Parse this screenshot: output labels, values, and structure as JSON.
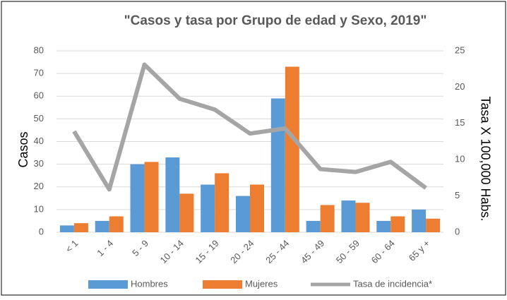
{
  "chart_data": {
    "type": "bar-line",
    "title": "\"Casos y tasa por Grupo de edad y Sexo, 2019\"",
    "y_label": "Casos",
    "y2_label": "Tasa X 100,000 Habs.",
    "categories": [
      "< 1",
      "1 - 4",
      "5 - 9",
      "10 - 14",
      "15 - 19",
      "20 - 24",
      "25 - 44",
      "45 - 49",
      "50 - 59",
      "60 - 64",
      "65 y +"
    ],
    "series": [
      {
        "name": "Hombres",
        "type": "bar",
        "color": "#5b9bd5",
        "values": [
          3,
          5,
          30,
          33,
          21,
          16,
          59,
          5,
          14,
          5,
          10
        ]
      },
      {
        "name": "Mujeres",
        "type": "bar",
        "color": "#ed7d31",
        "values": [
          4,
          7,
          31,
          17,
          26,
          21,
          73,
          12,
          13,
          7,
          6
        ]
      },
      {
        "name": "Tasa de incidencia*",
        "type": "line",
        "axis": "y2",
        "color": "#a5a5a5",
        "values": [
          13.9,
          5.9,
          23.1,
          18.4,
          16.9,
          13.6,
          14.3,
          8.7,
          8.3,
          9.7,
          6.1
        ]
      }
    ],
    "ylim": [
      0,
      80
    ],
    "yticks": [
      0,
      10,
      20,
      30,
      40,
      50,
      60,
      70,
      80
    ],
    "y2lim": [
      0,
      25
    ],
    "y2ticks": [
      0,
      5,
      10,
      15,
      20,
      25
    ],
    "grid": true,
    "legend": "bottom"
  }
}
